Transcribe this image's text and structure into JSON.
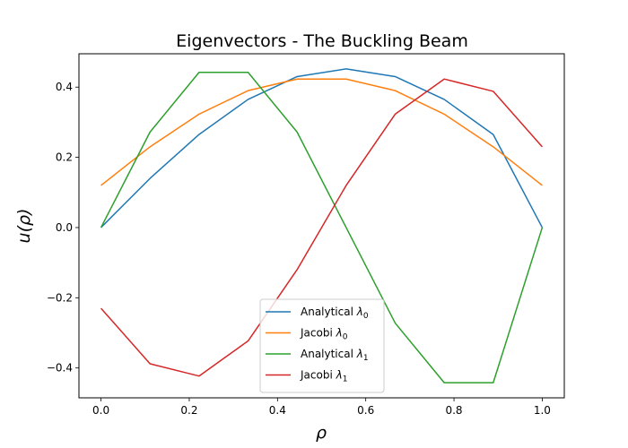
{
  "chart_data": {
    "type": "line",
    "title": "Eigenvectors - The Buckling Beam",
    "xlabel": "ρ",
    "ylabel": "u(ρ)",
    "xlim": [
      -0.05,
      1.05
    ],
    "ylim": [
      -0.485,
      0.495
    ],
    "xticks": [
      0.0,
      0.2,
      0.4,
      0.6,
      0.8,
      1.0
    ],
    "xtick_labels": [
      "0.0",
      "0.2",
      "0.4",
      "0.6",
      "0.8",
      "1.0"
    ],
    "yticks": [
      -0.4,
      -0.2,
      0.0,
      0.2,
      0.4
    ],
    "ytick_labels": [
      "−0.4",
      "−0.2",
      "0.0",
      "0.2",
      "0.4"
    ],
    "grid": false,
    "legend_position": "bottom-center",
    "x": [
      0.0,
      0.1111,
      0.2222,
      0.3333,
      0.4444,
      0.5556,
      0.6667,
      0.7778,
      0.8889,
      1.0
    ],
    "series": [
      {
        "name": "Analytical",
        "subscript": "0",
        "color": "#1f77b4",
        "values": [
          0.0,
          0.14,
          0.265,
          0.365,
          0.43,
          0.452,
          0.43,
          0.365,
          0.265,
          0.0
        ]
      },
      {
        "name": "Jacobi",
        "subscript": "0",
        "color": "#ff7f0e",
        "values": [
          0.12,
          0.23,
          0.323,
          0.39,
          0.423,
          0.423,
          0.39,
          0.323,
          0.23,
          0.12
        ]
      },
      {
        "name": "Analytical",
        "subscript": "1",
        "color": "#2ca02c",
        "values": [
          0.0,
          0.272,
          0.442,
          0.442,
          0.272,
          0.0,
          -0.272,
          -0.442,
          -0.442,
          0.0
        ]
      },
      {
        "name": "Jacobi",
        "subscript": "1",
        "color": "#d62728",
        "values": [
          -0.23,
          -0.388,
          -0.423,
          -0.323,
          -0.12,
          0.12,
          0.323,
          0.423,
          0.388,
          0.23
        ]
      }
    ]
  }
}
